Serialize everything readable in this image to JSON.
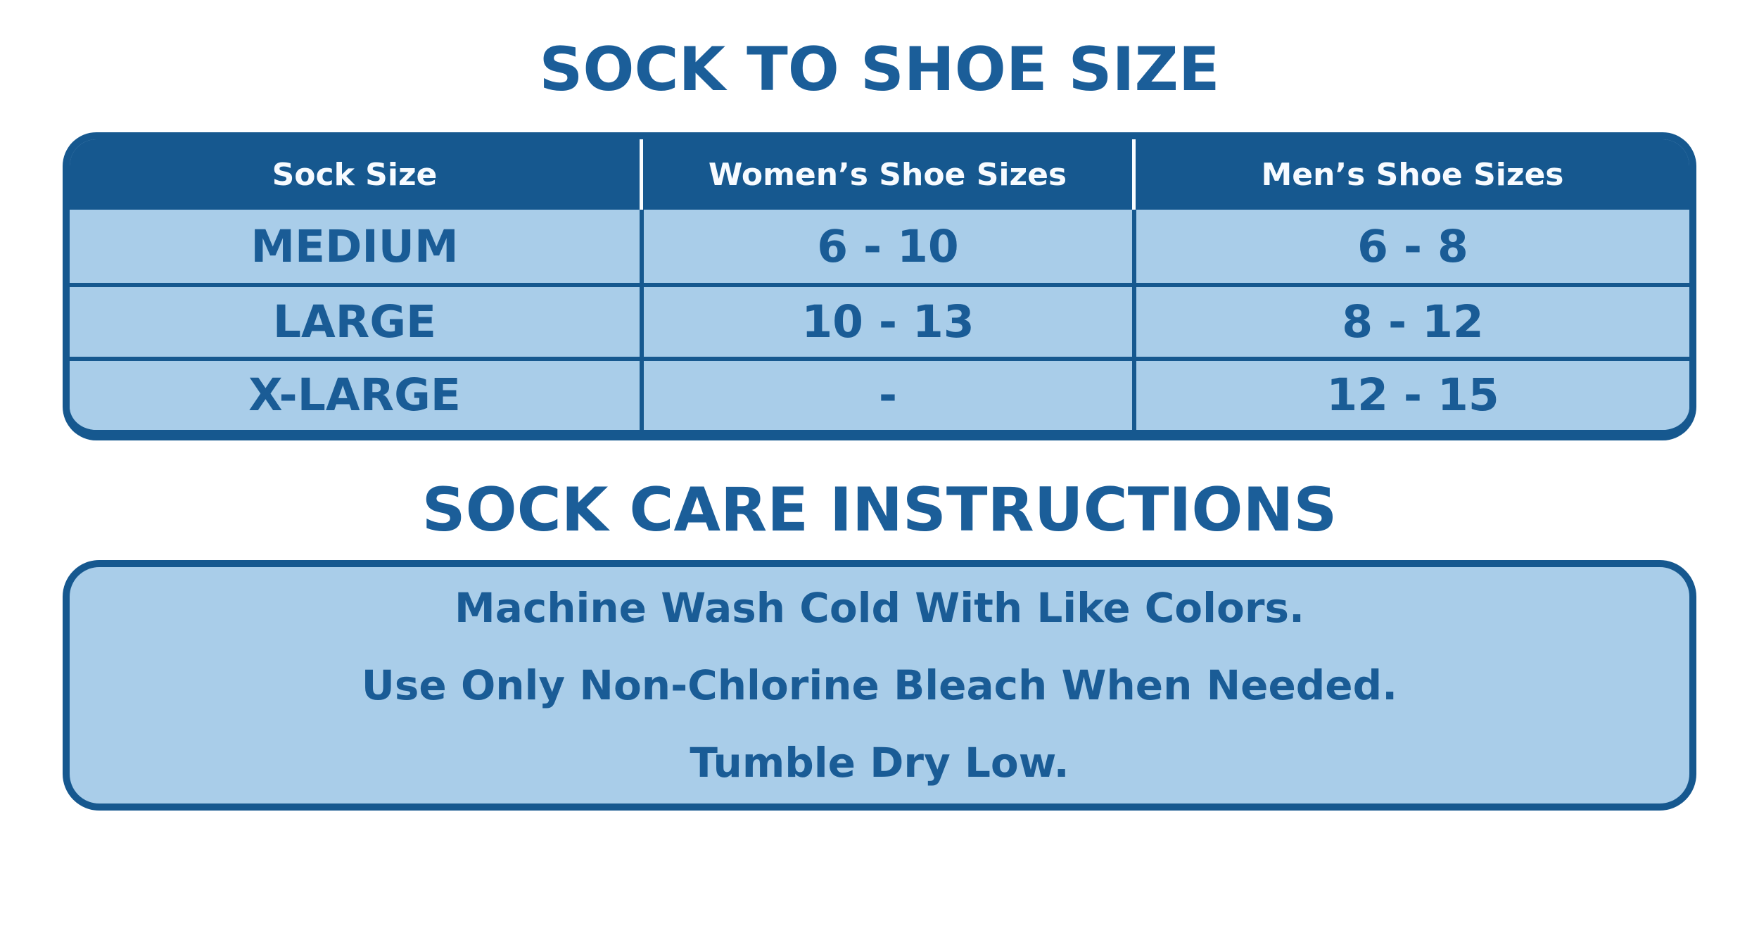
{
  "colors": {
    "dark_blue": "#16588F",
    "light_blue": "#A9CDE9",
    "text_blue": "#1A5C96",
    "background": "#FFFFFF"
  },
  "size_chart": {
    "title": "SOCK TO SHOE SIZE",
    "columns": {
      "sock": "Sock Size",
      "womens": "Women’s Shoe Sizes",
      "mens": "Men’s Shoe Sizes"
    },
    "rows": [
      {
        "sock_size": "MEDIUM",
        "womens": "6 - 10",
        "mens": "6 - 8"
      },
      {
        "sock_size": "LARGE",
        "womens": "10 - 13",
        "mens": "8 - 12"
      },
      {
        "sock_size": "X-LARGE",
        "womens": "-",
        "mens": "12 - 15"
      }
    ]
  },
  "care": {
    "title": "SOCK CARE INSTRUCTIONS",
    "lines": [
      "Machine Wash Cold With Like Colors.",
      "Use Only Non-Chlorine Bleach When Needed.",
      "Tumble Dry Low."
    ]
  }
}
